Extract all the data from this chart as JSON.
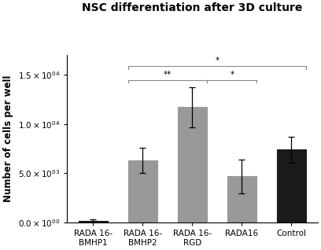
{
  "title": "NSC differentiation after 3D culture",
  "categories": [
    "RADA 16-\nBMHP1",
    "RADA 16-\nBMHP2",
    "RADA 16-\nRGD",
    "RADA16",
    "Control"
  ],
  "values": [
    200,
    6300,
    11700,
    4700,
    7400
  ],
  "errors": [
    100,
    1300,
    2000,
    1700,
    1300
  ],
  "bar_colors": [
    "#1a1a1a",
    "#999999",
    "#999999",
    "#999999",
    "#1a1a1a"
  ],
  "bar_edgecolors": [
    "#1a1a1a",
    "#999999",
    "#999999",
    "#999999",
    "#1a1a1a"
  ],
  "ylabel": "Number of cells per well",
  "ylim": [
    0,
    17000
  ],
  "yticks": [
    0,
    5000,
    10000,
    15000
  ],
  "ytick_labels": [
    "0.0 × 10⁺⁰⁰",
    "5.0 × 10⁰³",
    "1.0 × 10⁰⁴",
    "1.5 × 10⁰⁴"
  ],
  "background_color": "#ffffff",
  "title_fontsize": 10,
  "axis_fontsize": 8.5,
  "tick_fontsize": 7.5,
  "bracket_color": "#888888"
}
